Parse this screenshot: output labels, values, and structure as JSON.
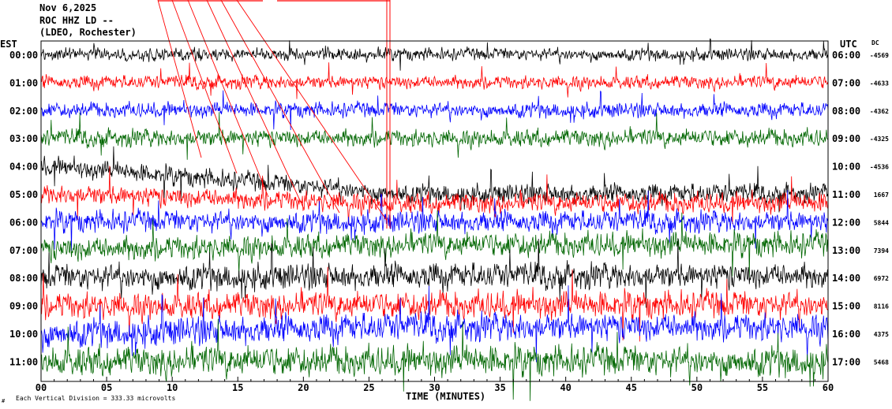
{
  "header": {
    "date": "Nov 6,2025",
    "station": "ROC HHZ LD --",
    "network": "(LDEO, Rochester)"
  },
  "axis_labels": {
    "left_zone": "EST",
    "right_zone": "UTC",
    "dc_header": "DC",
    "x_title": "TIME (MINUTES)",
    "scale_note": "Each Vertical Division =  333.33 microvolts",
    "corner_mark": "#"
  },
  "colors": {
    "trace_cycle": [
      "#000000",
      "#ff0000",
      "#0000ff",
      "#006600"
    ],
    "frame": "#000000",
    "background": "#ffffff"
  },
  "chart_data": {
    "type": "line",
    "xlabel": "TIME (MINUTES)",
    "xlim": [
      0,
      60
    ],
    "x_ticks": [
      "00",
      "05",
      "10",
      "15",
      "20",
      "25",
      "30",
      "35",
      "40",
      "45",
      "50",
      "55",
      "60"
    ],
    "rows": [
      {
        "est": "00:00",
        "utc": "06:00",
        "dc": "-4569"
      },
      {
        "est": "01:00",
        "utc": "07:00",
        "dc": "-4633"
      },
      {
        "est": "02:00",
        "utc": "08:00",
        "dc": "-4362"
      },
      {
        "est": "03:00",
        "utc": "09:00",
        "dc": "-4325"
      },
      {
        "est": "04:00",
        "utc": "10:00",
        "dc": "-4536"
      },
      {
        "est": "05:00",
        "utc": "11:00",
        "dc": "1667"
      },
      {
        "est": "06:00",
        "utc": "12:00",
        "dc": "5844"
      },
      {
        "est": "07:00",
        "utc": "13:00",
        "dc": "7394"
      },
      {
        "est": "08:00",
        "utc": "14:00",
        "dc": "6972"
      },
      {
        "est": "09:00",
        "utc": "15:00",
        "dc": "8116"
      },
      {
        "est": "10:00",
        "utc": "16:00",
        "dc": "4375"
      },
      {
        "est": "11:00",
        "utc": "17:00",
        "dc": "5468"
      }
    ]
  }
}
